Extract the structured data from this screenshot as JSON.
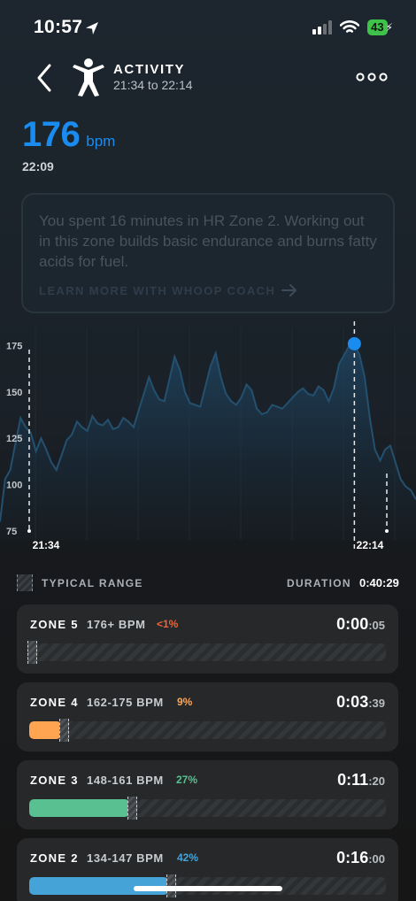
{
  "status_bar": {
    "time": "10:57",
    "battery": "43",
    "icons": [
      "location-arrow-icon",
      "signal-icon",
      "wifi-icon",
      "battery-charging-icon"
    ]
  },
  "nav": {
    "title": "ACTIVITY",
    "subtitle": "21:34 to 22:14",
    "icons": [
      "chevron-left-icon",
      "activity-figure-icon",
      "more-dots-icon"
    ]
  },
  "heart_rate": {
    "value": "176",
    "unit": "bpm",
    "time": "22:09",
    "color": "#1a8cf0"
  },
  "coach": {
    "text": "You spent 16 minutes in HR Zone 2. Working out in this zone builds basic endurance and burns fatty acids for fuel.",
    "link": "LEARN MORE WITH WHOOP COACH"
  },
  "chart_data": {
    "type": "area",
    "y_ticks": [
      "175",
      "150",
      "125",
      "100",
      "75"
    ],
    "ylim": [
      75,
      180
    ],
    "x_labels": [
      "21:34",
      "22:14"
    ],
    "selected_point": {
      "time": "22:09",
      "value": 176
    },
    "series": [
      {
        "values": [
          80,
          103,
          108,
          122,
          136,
          131,
          128,
          118,
          125,
          119,
          112,
          108,
          116,
          124,
          127,
          134,
          131,
          129,
          137,
          133,
          132,
          135,
          130,
          131,
          136,
          134,
          131,
          140,
          149,
          158,
          151,
          146,
          145,
          157,
          169,
          162,
          150,
          144,
          143,
          142,
          153,
          164,
          171,
          158,
          149,
          145,
          143,
          147,
          154,
          151,
          141,
          138,
          139,
          143,
          142,
          141,
          144,
          147,
          150,
          152,
          149,
          148,
          153,
          151,
          145,
          152,
          165,
          170,
          175,
          176,
          170,
          158,
          136,
          119,
          113,
          119,
          121,
          112,
          103,
          99,
          97,
          92
        ]
      }
    ]
  },
  "legend": {
    "typical_range": "TYPICAL RANGE",
    "duration_label": "DURATION",
    "duration_value": "0:40:29"
  },
  "zones": [
    {
      "name": "ZONE 5",
      "range": "176+ BPM",
      "pct": "<1%",
      "dur_main": "0:00",
      "dur_sec": ":05",
      "color": "#f0633a",
      "fill": 0.0,
      "typical": 0.0
    },
    {
      "name": "ZONE 4",
      "range": "162-175 BPM",
      "pct": "9%",
      "dur_main": "0:03",
      "dur_sec": ":39",
      "color": "#ffa451",
      "fill": 0.09,
      "typical": 0.09
    },
    {
      "name": "ZONE 3",
      "range": "148-161 BPM",
      "pct": "27%",
      "dur_main": "0:11",
      "dur_sec": ":20",
      "color": "#59c191",
      "fill": 0.28,
      "typical": 0.28
    },
    {
      "name": "ZONE 2",
      "range": "134-147 BPM",
      "pct": "42%",
      "dur_main": "0:16",
      "dur_sec": ":00",
      "color": "#46a3d8",
      "fill": 0.39,
      "typical": 0.39
    }
  ]
}
